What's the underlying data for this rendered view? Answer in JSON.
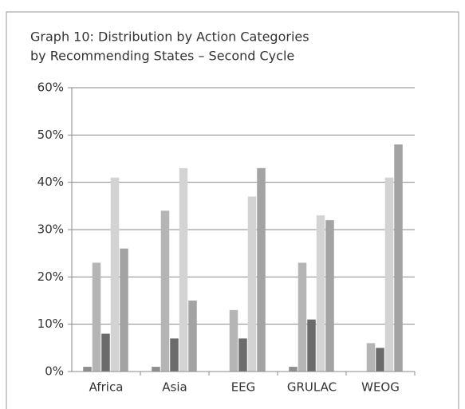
{
  "chart_data": {
    "type": "bar",
    "title": [
      "Graph 10: Distribution by Action Categories",
      "by Recommending States – Second Cycle"
    ],
    "categories": [
      "Africa",
      "Asia",
      "EEG",
      "GRULAC",
      "WEOG"
    ],
    "series": [
      {
        "color": "#8e8e8e",
        "values": [
          1,
          1,
          0,
          1,
          0
        ]
      },
      {
        "color": "#b5b5b5",
        "values": [
          23,
          34,
          13,
          23,
          6
        ]
      },
      {
        "color": "#6b6b6b",
        "values": [
          8,
          7,
          7,
          11,
          5
        ]
      },
      {
        "color": "#d3d3d3",
        "values": [
          41,
          43,
          37,
          33,
          41
        ]
      },
      {
        "color": "#a3a3a3",
        "values": [
          26,
          15,
          43,
          32,
          48
        ]
      }
    ],
    "ylim": [
      0,
      60
    ],
    "yticks": [
      {
        "value": 0,
        "label": "0%"
      },
      {
        "value": 10,
        "label": "10%"
      },
      {
        "value": 20,
        "label": "20%"
      },
      {
        "value": 30,
        "label": "30%"
      },
      {
        "value": 40,
        "label": "40%"
      },
      {
        "value": 50,
        "label": "50%"
      },
      {
        "value": 60,
        "label": "60%"
      }
    ],
    "grid": true
  }
}
